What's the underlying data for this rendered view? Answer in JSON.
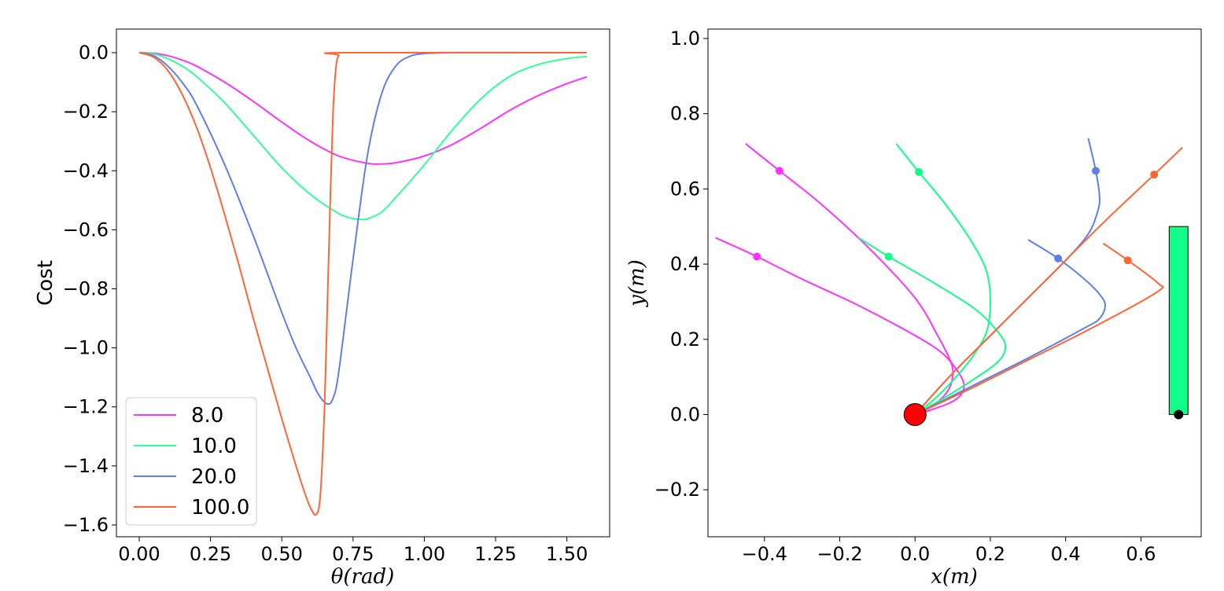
{
  "chart_data": [
    {
      "type": "line",
      "xlabel": "θ(rad)",
      "ylabel": "Cost",
      "xlim": [
        -0.08,
        1.65
      ],
      "ylim": [
        -1.64,
        0.08
      ],
      "xticks": [
        0.0,
        0.25,
        0.5,
        0.75,
        1.0,
        1.25,
        1.5
      ],
      "xtick_labels": [
        "0.00",
        "0.25",
        "0.50",
        "0.75",
        "1.00",
        "1.25",
        "1.50"
      ],
      "yticks": [
        0.0,
        -0.2,
        -0.4,
        -0.6,
        -0.8,
        -1.0,
        -1.2,
        -1.4,
        -1.6
      ],
      "ytick_labels": [
        "0.0",
        "−0.2",
        "−0.4",
        "−0.6",
        "−0.8",
        "−1.0",
        "−1.2",
        "−1.4",
        "−1.6"
      ],
      "legend_position": "lower-left",
      "series": [
        {
          "name": "8.0",
          "color": "#ff33ff",
          "x": [
            0,
            0.05,
            0.1,
            0.15,
            0.2,
            0.3,
            0.4,
            0.5,
            0.6,
            0.7,
            0.8,
            0.85,
            0.9,
            1.0,
            1.1,
            1.2,
            1.3,
            1.4,
            1.5,
            1.57
          ],
          "y": [
            0,
            -0.002,
            -0.01,
            -0.025,
            -0.045,
            -0.1,
            -0.165,
            -0.235,
            -0.3,
            -0.35,
            -0.375,
            -0.377,
            -0.373,
            -0.35,
            -0.31,
            -0.255,
            -0.195,
            -0.145,
            -0.105,
            -0.082
          ]
        },
        {
          "name": "10.0",
          "color": "#33ff99",
          "x": [
            0,
            0.05,
            0.1,
            0.15,
            0.2,
            0.3,
            0.4,
            0.5,
            0.6,
            0.7,
            0.75,
            0.78,
            0.8,
            0.85,
            0.9,
            1.0,
            1.1,
            1.2,
            1.3,
            1.4,
            1.5,
            1.57
          ],
          "y": [
            0,
            -0.004,
            -0.02,
            -0.045,
            -0.08,
            -0.17,
            -0.28,
            -0.39,
            -0.48,
            -0.545,
            -0.562,
            -0.565,
            -0.563,
            -0.54,
            -0.49,
            -0.38,
            -0.26,
            -0.155,
            -0.08,
            -0.04,
            -0.02,
            -0.013
          ]
        },
        {
          "name": "20.0",
          "color": "#5f7fe6",
          "x": [
            0,
            0.05,
            0.1,
            0.15,
            0.2,
            0.3,
            0.4,
            0.5,
            0.55,
            0.6,
            0.63,
            0.66,
            0.68,
            0.7,
            0.75,
            0.8,
            0.85,
            0.9,
            0.95,
            1.0,
            1.05,
            1.1,
            1.15,
            1.2,
            1.57
          ],
          "y": [
            0,
            -0.01,
            -0.045,
            -0.1,
            -0.175,
            -0.38,
            -0.62,
            -0.88,
            -1.0,
            -1.1,
            -1.16,
            -1.19,
            -1.17,
            -1.08,
            -0.7,
            -0.35,
            -0.14,
            -0.045,
            -0.012,
            -0.003,
            -0.001,
            0,
            0,
            0,
            0
          ]
        },
        {
          "name": "100.0",
          "color": "#ff6633",
          "x": [
            0,
            0.05,
            0.1,
            0.15,
            0.2,
            0.25,
            0.3,
            0.35,
            0.4,
            0.45,
            0.5,
            0.55,
            0.58,
            0.6,
            0.62,
            0.635,
            0.65,
            0.66,
            0.67,
            0.68,
            0.69,
            0.7,
            0.72,
            1.57
          ],
          "y": [
            0,
            -0.015,
            -0.06,
            -0.14,
            -0.25,
            -0.39,
            -0.55,
            -0.72,
            -0.9,
            -1.07,
            -1.24,
            -1.4,
            -1.49,
            -1.54,
            -1.565,
            -1.5,
            -1.2,
            -0.85,
            -0.5,
            -0.2,
            -0.05,
            -0.01,
            0,
            0
          ]
        }
      ]
    },
    {
      "type": "line",
      "xlabel": "x(m)",
      "ylabel": "y(m)",
      "xlim": [
        -0.55,
        0.76
      ],
      "ylim": [
        -0.325,
        1.025
      ],
      "xticks": [
        -0.4,
        -0.2,
        0.0,
        0.2,
        0.4,
        0.6
      ],
      "xtick_labels": [
        "−0.4",
        "−0.2",
        "0.0",
        "0.2",
        "0.4",
        "0.6"
      ],
      "yticks": [
        -0.2,
        0.0,
        0.2,
        0.4,
        0.6,
        0.8,
        1.0
      ],
      "ytick_labels": [
        "−0.2",
        "0.0",
        "0.2",
        "0.4",
        "0.6",
        "0.8",
        "1.0"
      ],
      "origin_marker": {
        "x": 0.0,
        "y": 0.0,
        "color": "#ff0000"
      },
      "target_bar": {
        "x0": 0.675,
        "x1": 0.725,
        "y0": 0.0,
        "y1": 0.5,
        "color": "#11ff88"
      },
      "target_point": {
        "x": 0.7,
        "y": 0.0,
        "color": "#000000"
      },
      "series": [
        {
          "name": "8.0 upper",
          "color": "#ff33ff",
          "x": [
            -0.45,
            -0.36,
            -0.25,
            -0.12,
            0.0,
            0.06,
            0.095,
            0.1,
            0.085,
            0.05,
            0.02,
            0.0
          ],
          "y": [
            0.72,
            0.648,
            0.56,
            0.44,
            0.31,
            0.21,
            0.14,
            0.1,
            0.06,
            0.025,
            0.008,
            0.0
          ],
          "marker": {
            "x": -0.36,
            "y": 0.648
          }
        },
        {
          "name": "8.0 lower",
          "color": "#ff33ff",
          "x": [
            -0.53,
            -0.42,
            -0.3,
            -0.15,
            0.0,
            0.07,
            0.11,
            0.13,
            0.12,
            0.09,
            0.05,
            0.02,
            0.0
          ],
          "y": [
            0.47,
            0.42,
            0.36,
            0.29,
            0.21,
            0.165,
            0.12,
            0.08,
            0.05,
            0.03,
            0.015,
            0.005,
            0.0
          ],
          "marker": {
            "x": -0.42,
            "y": 0.42
          }
        },
        {
          "name": "10.0 upper",
          "color": "#11ff88",
          "x": [
            -0.05,
            0.01,
            0.08,
            0.15,
            0.19,
            0.2,
            0.19,
            0.15,
            0.1,
            0.05,
            0.0
          ],
          "y": [
            0.72,
            0.645,
            0.56,
            0.46,
            0.38,
            0.3,
            0.22,
            0.15,
            0.09,
            0.04,
            0.0
          ],
          "marker": {
            "x": 0.01,
            "y": 0.645
          }
        },
        {
          "name": "10.0 lower",
          "color": "#11ff88",
          "x": [
            -0.15,
            -0.07,
            0.05,
            0.16,
            0.22,
            0.24,
            0.22,
            0.15,
            0.07,
            0.0
          ],
          "y": [
            0.47,
            0.42,
            0.35,
            0.28,
            0.22,
            0.18,
            0.14,
            0.09,
            0.04,
            0.0
          ],
          "marker": {
            "x": -0.07,
            "y": 0.42
          }
        },
        {
          "name": "20.0 upper",
          "color": "#5f7fe6",
          "x": [
            0.46,
            0.48,
            0.49,
            0.485,
            0.46,
            0.4,
            0.3,
            0.2,
            0.1,
            0.0
          ],
          "y": [
            0.735,
            0.648,
            0.58,
            0.54,
            0.48,
            0.41,
            0.31,
            0.21,
            0.11,
            0.0
          ],
          "marker": {
            "x": 0.48,
            "y": 0.648
          }
        },
        {
          "name": "20.0 lower",
          "color": "#5f7fe6",
          "x": [
            0.3,
            0.38,
            0.45,
            0.49,
            0.505,
            0.49,
            0.45,
            0.3,
            0.15,
            0.0
          ],
          "y": [
            0.465,
            0.415,
            0.36,
            0.32,
            0.29,
            0.255,
            0.23,
            0.15,
            0.075,
            0.0
          ],
          "marker": {
            "x": 0.38,
            "y": 0.415
          }
        },
        {
          "name": "100.0 upper",
          "color": "#ff6633",
          "x": [
            0.71,
            0.635,
            0.5,
            0.35,
            0.2,
            0.1,
            0.0
          ],
          "y": [
            0.71,
            0.638,
            0.51,
            0.36,
            0.21,
            0.11,
            0.0
          ],
          "marker": {
            "x": 0.635,
            "y": 0.638
          }
        },
        {
          "name": "100.0 lower",
          "color": "#ff6633",
          "x": [
            0.5,
            0.565,
            0.62,
            0.65,
            0.655,
            0.6,
            0.45,
            0.3,
            0.15,
            0.0
          ],
          "y": [
            0.455,
            0.41,
            0.37,
            0.345,
            0.335,
            0.3,
            0.22,
            0.145,
            0.07,
            0.0
          ],
          "marker": {
            "x": 0.565,
            "y": 0.41
          }
        }
      ]
    }
  ]
}
